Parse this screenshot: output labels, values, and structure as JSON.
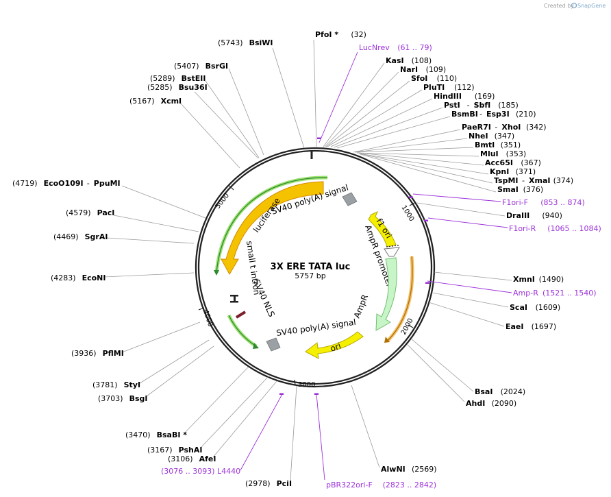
{
  "credit": {
    "text": "Created by",
    "brand": "SnapGene"
  },
  "plasmid": {
    "name": "3X ERE TATA luc",
    "size": "5757 bp"
  },
  "ticks": [
    "1000",
    "2000",
    "3000",
    "4000",
    "5000"
  ],
  "features": {
    "luciferase": "luciferase",
    "sv40_polya_top": "SV40 poly(A) signal",
    "small_t_intron": "small t intron",
    "sv40_nls": "SV40 NLS",
    "sv40_polya_bottom": "SV40 poly(A) signal",
    "ori": "ori",
    "f1_ori": "f1 ori",
    "ampr_promoter": "AmpR promoter",
    "ampr": "AmpR"
  },
  "sites": [
    {
      "pos": "(5743)",
      "name": "BsiWI"
    },
    {
      "pos": "(5407)",
      "name": "BsrGI"
    },
    {
      "pos": "(5289)",
      "name": "BstEII"
    },
    {
      "pos": "(5285)",
      "name": "Bsu36I"
    },
    {
      "pos": "(5167)",
      "name": "XcmI"
    },
    {
      "pos": "(4719)",
      "name": "EcoO109I",
      "name2": "PpuMI"
    },
    {
      "pos": "(4579)",
      "name": "PacI"
    },
    {
      "pos": "(4469)",
      "name": "SgrAI"
    },
    {
      "pos": "(4283)",
      "name": "EcoNI"
    },
    {
      "pos": "(3936)",
      "name": "PflMI"
    },
    {
      "pos": "(3781)",
      "name": "StyI"
    },
    {
      "pos": "(3703)",
      "name": "BsgI"
    },
    {
      "pos": "(3470)",
      "name": "BsaBI *"
    },
    {
      "pos": "(3167)",
      "name": "PshAI"
    },
    {
      "pos": "(3106)",
      "name": "AfeI"
    },
    {
      "pos": "(2978)",
      "name": "PciI"
    },
    {
      "pos": "(32)",
      "name": "PfoI *"
    },
    {
      "pos": "(108)",
      "name": "KasI"
    },
    {
      "pos": "(109)",
      "name": "NarI"
    },
    {
      "pos": "(110)",
      "name": "SfoI"
    },
    {
      "pos": "(112)",
      "name": "PluTI"
    },
    {
      "pos": "(169)",
      "name": "HindIII"
    },
    {
      "pos": "(185)",
      "name": "PstI",
      "name2": "SbfI"
    },
    {
      "pos": "(210)",
      "name": "BsmBI",
      "name2": "Esp3I"
    },
    {
      "pos": "(342)",
      "name": "PaeR7I",
      "name2": "XhoI"
    },
    {
      "pos": "(347)",
      "name": "NheI"
    },
    {
      "pos": "(351)",
      "name": "BmtI"
    },
    {
      "pos": "(353)",
      "name": "MluI"
    },
    {
      "pos": "(367)",
      "name": "Acc65I"
    },
    {
      "pos": "(371)",
      "name": "KpnI"
    },
    {
      "pos": "(374)",
      "name": "TspMI",
      "name2": "XmaI"
    },
    {
      "pos": "(376)",
      "name": "SmaI"
    },
    {
      "pos": "(940)",
      "name": "DraIII"
    },
    {
      "pos": "(1490)",
      "name": "XmnI"
    },
    {
      "pos": "(1609)",
      "name": "ScaI"
    },
    {
      "pos": "(1697)",
      "name": "EaeI"
    },
    {
      "pos": "(2024)",
      "name": "BsaI"
    },
    {
      "pos": "(2090)",
      "name": "AhdI"
    },
    {
      "pos": "(2569)",
      "name": "AlwNI"
    }
  ],
  "primers": [
    {
      "name": "LucNrev",
      "range": "(61 .. 79)"
    },
    {
      "name": "F1ori-F",
      "range": "(853 .. 874)"
    },
    {
      "name": "F1ori-R",
      "range": "(1065 .. 1084)"
    },
    {
      "name": "Amp-R",
      "range": "(1521 .. 1540)"
    },
    {
      "name": "L4440",
      "range": "(3076 .. 3093)"
    },
    {
      "name": "pBR322ori-F",
      "range": "(2823 .. 2842)"
    }
  ]
}
